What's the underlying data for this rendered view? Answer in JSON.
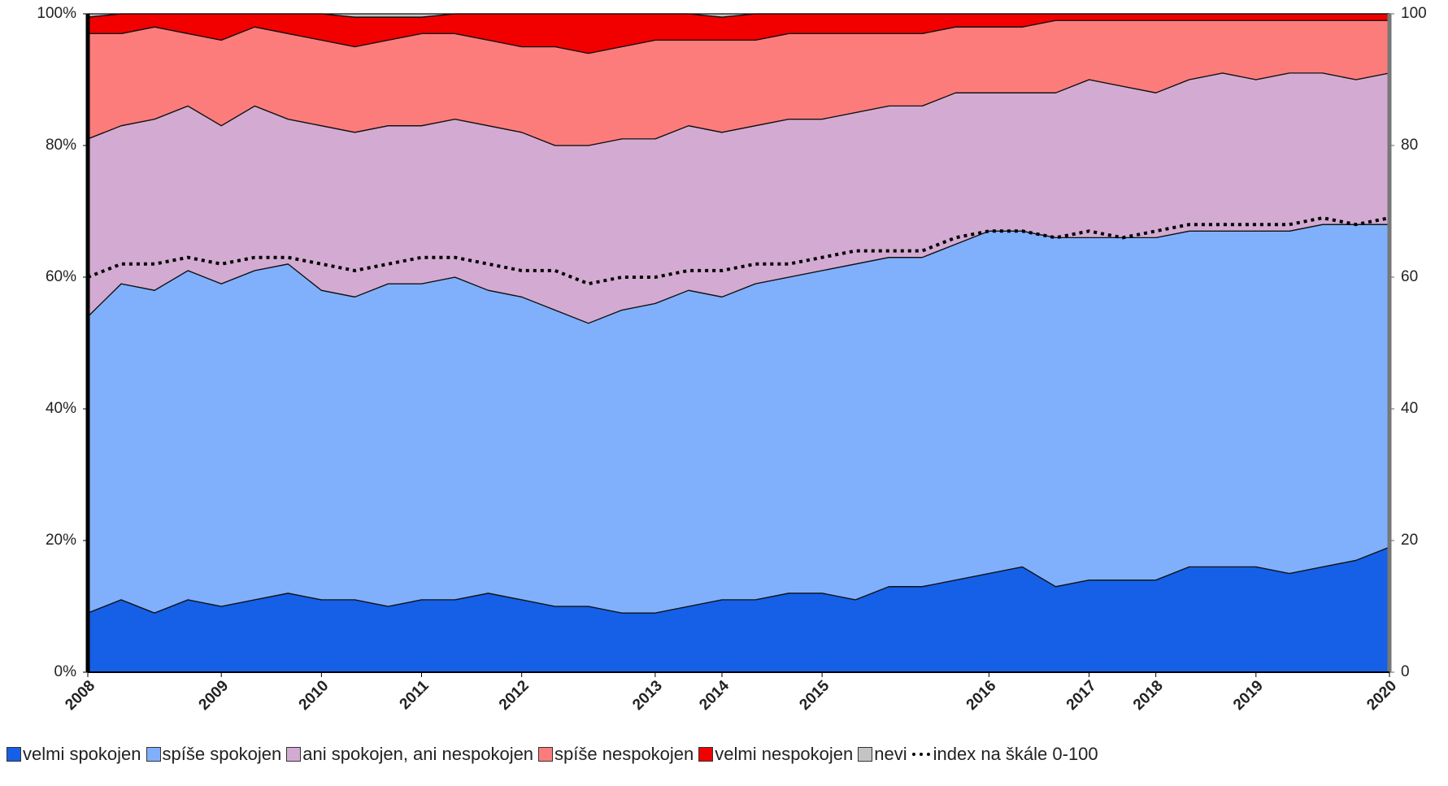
{
  "chart_data": {
    "type": "stacked_area",
    "categories": [
      "2008",
      null,
      null,
      null,
      "2009",
      null,
      null,
      "2010",
      null,
      null,
      "2011",
      null,
      null,
      "2012",
      null,
      null,
      null,
      "2013",
      null,
      "2014",
      null,
      null,
      "2015",
      null,
      null,
      null,
      null,
      "2016",
      null,
      null,
      "2017",
      null,
      "2018",
      null,
      null,
      "2019",
      null,
      null,
      null,
      "2020"
    ],
    "series": [
      {
        "name": "velmi spokojen",
        "color": "#1560e6",
        "values": [
          9,
          11,
          9,
          11,
          10,
          11,
          12,
          11,
          11,
          10,
          11,
          11,
          12,
          11,
          10,
          10,
          9,
          9,
          10,
          11,
          11,
          12,
          12,
          11,
          13,
          13,
          14,
          15,
          16,
          13,
          14,
          14,
          14,
          16,
          16,
          16,
          15,
          16,
          17,
          19
        ]
      },
      {
        "name": "spíše spokojen",
        "color": "#80b0fc",
        "values": [
          45,
          48,
          49,
          50,
          49,
          50,
          50,
          47,
          46,
          49,
          48,
          49,
          46,
          46,
          45,
          43,
          46,
          47,
          48,
          46,
          48,
          48,
          49,
          51,
          50,
          50,
          51,
          52,
          51,
          53,
          52,
          52,
          52,
          51,
          51,
          51,
          52,
          52,
          51,
          49
        ]
      },
      {
        "name": "ani spokojen, ani nespokojen",
        "color": "#d3abd2",
        "values": [
          27,
          24,
          26,
          25,
          24,
          25,
          22,
          25,
          25,
          24,
          24,
          24,
          25,
          25,
          25,
          27,
          26,
          25,
          25,
          25,
          24,
          24,
          23,
          23,
          23,
          23,
          23,
          21,
          21,
          22,
          24,
          23,
          22,
          23,
          24,
          23,
          24,
          23,
          22,
          23
        ]
      },
      {
        "name": "spíše nespokojen",
        "color": "#fc7c7c",
        "values": [
          16,
          14,
          14,
          11,
          13,
          12,
          13,
          13,
          13,
          13,
          14,
          13,
          13,
          13,
          15,
          14,
          14,
          15,
          13,
          14,
          13,
          13,
          13,
          12,
          11,
          11,
          10,
          10,
          10,
          11,
          9,
          10,
          11,
          9,
          8,
          9,
          8,
          8,
          9,
          8
        ]
      },
      {
        "name": "velmi nespokojen",
        "color": "#f20000",
        "values": [
          2.5,
          3,
          2,
          3,
          4,
          2,
          3,
          4,
          4.5,
          3.5,
          2.5,
          3,
          4,
          5,
          5,
          6,
          5,
          4,
          4,
          3.5,
          4,
          3,
          3,
          3,
          3,
          3,
          2,
          2,
          2,
          1,
          1,
          1,
          1,
          1,
          1,
          1,
          1,
          1,
          1,
          1
        ]
      },
      {
        "name": "nevi",
        "color": "#c4c4c4",
        "values": [
          0.5,
          0,
          0,
          0,
          0,
          0,
          0,
          0,
          0.5,
          0.5,
          0.5,
          0,
          0,
          0,
          0,
          0,
          0,
          0,
          0,
          0.5,
          0,
          0,
          0,
          0,
          0,
          0,
          0,
          0,
          0,
          0,
          0,
          0,
          0,
          0,
          0,
          0,
          0,
          0,
          0,
          0
        ]
      },
      {
        "name": "index na škále 0-100",
        "color": "#000000",
        "axis": "y2",
        "line": "dotted",
        "values": [
          60,
          62,
          62,
          63,
          62,
          63,
          63,
          62,
          61,
          62,
          63,
          63,
          62,
          61,
          61,
          59,
          60,
          60,
          61,
          61,
          62,
          62,
          63,
          64,
          64,
          64,
          66,
          67,
          67,
          66,
          67,
          66,
          67,
          68,
          68,
          68,
          68,
          69,
          68,
          69
        ]
      }
    ],
    "ylim": [
      0,
      100
    ],
    "yticks": [
      {
        "value": 0,
        "label": "0%"
      },
      {
        "value": 20,
        "label": "20%"
      },
      {
        "value": 40,
        "label": "40%"
      },
      {
        "value": 60,
        "label": "60%"
      },
      {
        "value": 80,
        "label": "80%"
      },
      {
        "value": 100,
        "label": "100%"
      }
    ],
    "y2lim": [
      0,
      100
    ],
    "y2ticks": [
      0,
      20,
      40,
      60,
      80,
      100
    ],
    "legend": "bottom"
  }
}
